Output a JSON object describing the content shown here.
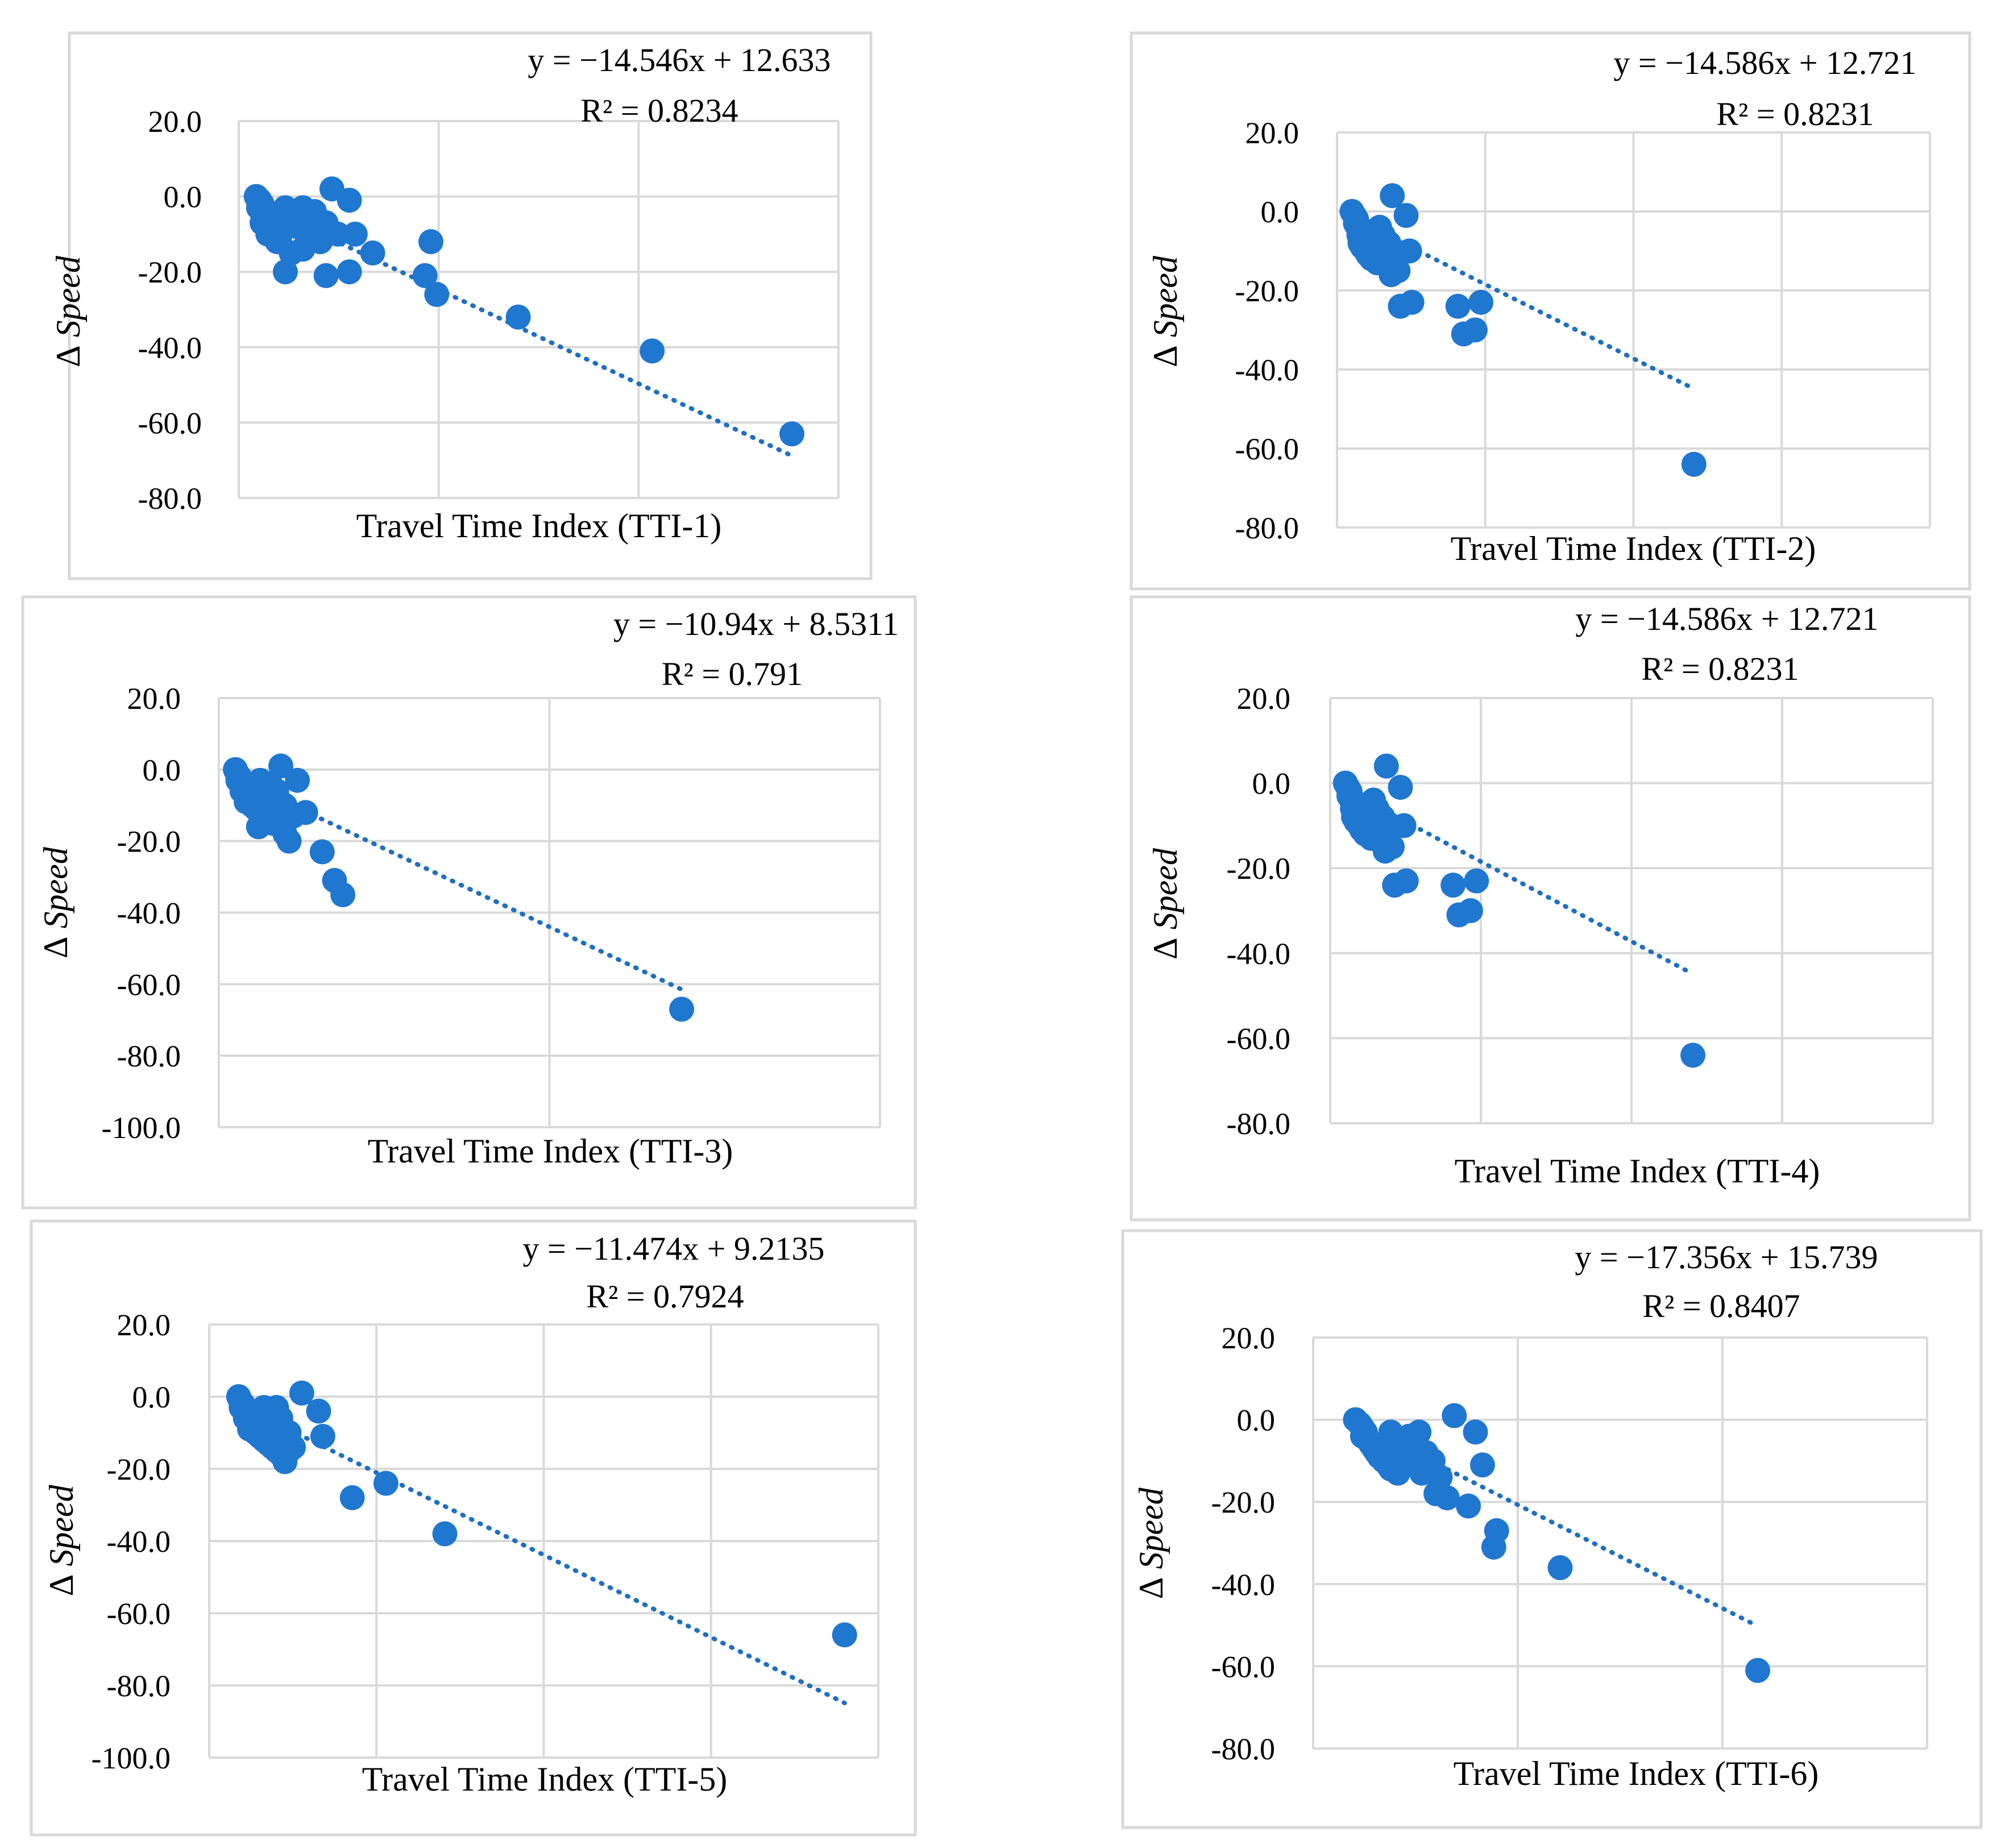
{
  "figure": {
    "colors": {
      "marker": "#1f77d0",
      "trend": "#1f70c1",
      "grid": "#d9d9d9"
    },
    "ylabel_symbol": "Δ",
    "ylabel_word": "Speed"
  },
  "chart_data": [
    {
      "type": "scatter",
      "xlabel": "Travel Time Index (TTI-1)",
      "ylabel": "Δ Speed",
      "equation": "y = −14.546x + 12.633",
      "r2_text": "R² = 0.8234",
      "trend": {
        "slope": -14.546,
        "intercept": 12.633
      },
      "ylim": [
        -80,
        20
      ],
      "yticks": [
        "20.0",
        "0.0",
        "-20.0",
        "-40.0",
        "-60.0",
        "-80.0"
      ],
      "xlim": [
        0.85,
        6.0
      ],
      "points": [
        [
          1.0,
          0
        ],
        [
          1.03,
          -1
        ],
        [
          1.05,
          -2
        ],
        [
          1.02,
          -3
        ],
        [
          1.06,
          -4
        ],
        [
          1.08,
          -5
        ],
        [
          1.1,
          -6
        ],
        [
          1.05,
          -7
        ],
        [
          1.12,
          -8
        ],
        [
          1.15,
          -9
        ],
        [
          1.1,
          -10
        ],
        [
          1.2,
          -11
        ],
        [
          1.18,
          -12
        ],
        [
          1.25,
          -3
        ],
        [
          1.3,
          -5
        ],
        [
          1.35,
          -8
        ],
        [
          1.4,
          -6
        ],
        [
          1.45,
          -10
        ],
        [
          1.5,
          -8
        ],
        [
          1.6,
          -7
        ],
        [
          1.55,
          -12
        ],
        [
          1.4,
          -14
        ],
        [
          1.3,
          -15
        ],
        [
          1.7,
          -10
        ],
        [
          1.85,
          -10
        ],
        [
          2.0,
          -15
        ],
        [
          1.65,
          2
        ],
        [
          1.8,
          -1
        ],
        [
          1.4,
          -3
        ],
        [
          1.2,
          -5
        ],
        [
          1.5,
          -4
        ],
        [
          1.25,
          -20
        ],
        [
          1.6,
          -21
        ],
        [
          1.8,
          -20
        ],
        [
          2.45,
          -21
        ],
        [
          2.5,
          -12
        ],
        [
          2.55,
          -26
        ],
        [
          3.25,
          -32
        ],
        [
          4.4,
          -41
        ],
        [
          5.6,
          -63
        ]
      ]
    },
    {
      "type": "scatter",
      "xlabel": "Travel Time Index (TTI-2)",
      "ylabel": "Δ Speed",
      "equation": "y = −14.586x + 12.721",
      "r2_text": "R² = 0.8231",
      "trend": {
        "slope": -14.586,
        "intercept": 12.721
      },
      "ylim": [
        -80,
        20
      ],
      "yticks": [
        "20.0",
        "0.0",
        "-20.0",
        "-40.0",
        "-60.0",
        "-80.0"
      ],
      "xlim": [
        0.85,
        6.0
      ],
      "points": [
        [
          0.98,
          0
        ],
        [
          1.0,
          -1
        ],
        [
          1.02,
          -2
        ],
        [
          1.01,
          -3
        ],
        [
          1.03,
          -4
        ],
        [
          1.05,
          -5
        ],
        [
          1.04,
          -6
        ],
        [
          1.06,
          -7
        ],
        [
          1.08,
          -8
        ],
        [
          1.07,
          -9
        ],
        [
          1.1,
          -10
        ],
        [
          1.12,
          -11
        ],
        [
          1.15,
          -12
        ],
        [
          1.2,
          -13
        ],
        [
          1.25,
          -6
        ],
        [
          1.28,
          -9
        ],
        [
          1.22,
          -4
        ],
        [
          1.3,
          -8
        ],
        [
          1.35,
          -12
        ],
        [
          1.32,
          -16
        ],
        [
          1.38,
          -15
        ],
        [
          1.33,
          4
        ],
        [
          1.45,
          -1
        ],
        [
          1.48,
          -10
        ],
        [
          1.4,
          -24
        ],
        [
          1.5,
          -23
        ],
        [
          1.9,
          -24
        ],
        [
          2.1,
          -23
        ],
        [
          1.95,
          -31
        ],
        [
          2.05,
          -30
        ],
        [
          1.15,
          -7
        ],
        [
          1.18,
          -10
        ],
        [
          1.05,
          -8
        ],
        [
          1.1,
          -5
        ],
        [
          3.95,
          -64
        ]
      ]
    },
    {
      "type": "scatter",
      "xlabel": "Travel Time Index (TTI-3)",
      "ylabel": "Δ Speed",
      "equation": "y = −10.94x + 8.5311",
      "r2_text": "R² = 0.791",
      "trend": {
        "slope": -10.94,
        "intercept": 8.5311
      },
      "ylim": [
        -100,
        20
      ],
      "yticks": [
        "20.0",
        "0.0",
        "-20.0",
        "-40.0",
        "-60.0",
        "-80.0",
        "-100.0"
      ],
      "xlim": [
        0.8,
        8.8
      ],
      "points": [
        [
          1.0,
          0
        ],
        [
          1.02,
          -1
        ],
        [
          1.05,
          -2
        ],
        [
          1.03,
          -3
        ],
        [
          1.07,
          -4
        ],
        [
          1.1,
          -5
        ],
        [
          1.08,
          -6
        ],
        [
          1.12,
          -7
        ],
        [
          1.15,
          -8
        ],
        [
          1.13,
          -9
        ],
        [
          1.2,
          -10
        ],
        [
          1.25,
          -11
        ],
        [
          1.3,
          -12
        ],
        [
          1.35,
          -13
        ],
        [
          1.4,
          -14
        ],
        [
          1.45,
          -15
        ],
        [
          1.28,
          -16
        ],
        [
          1.5,
          -14
        ],
        [
          1.55,
          -12
        ],
        [
          1.6,
          -10
        ],
        [
          1.5,
          -6
        ],
        [
          1.42,
          -4
        ],
        [
          1.38,
          -8
        ],
        [
          1.6,
          -18
        ],
        [
          1.65,
          -20
        ],
        [
          1.7,
          -13
        ],
        [
          1.6,
          -12
        ],
        [
          1.55,
          1
        ],
        [
          1.75,
          -3
        ],
        [
          1.85,
          -12
        ],
        [
          2.05,
          -23
        ],
        [
          2.2,
          -31
        ],
        [
          2.3,
          -35
        ],
        [
          1.3,
          -3
        ],
        [
          1.2,
          -6
        ],
        [
          1.45,
          -9
        ],
        [
          6.4,
          -67
        ]
      ]
    },
    {
      "type": "scatter",
      "xlabel": "Travel Time Index (TTI-4)",
      "ylabel": "Δ Speed",
      "equation": "y = −14.586x + 12.721",
      "r2_text": "R² = 0.8231",
      "trend": {
        "slope": -14.586,
        "intercept": 12.721
      },
      "ylim": [
        -80,
        20
      ],
      "yticks": [
        "20.0",
        "0.0",
        "-20.0",
        "-40.0",
        "-60.0",
        "-80.0"
      ],
      "xlim": [
        0.85,
        6.0
      ],
      "points": [
        [
          0.98,
          0
        ],
        [
          1.0,
          -1
        ],
        [
          1.02,
          -2
        ],
        [
          1.01,
          -3
        ],
        [
          1.03,
          -4
        ],
        [
          1.05,
          -5
        ],
        [
          1.04,
          -6
        ],
        [
          1.06,
          -7
        ],
        [
          1.08,
          -8
        ],
        [
          1.07,
          -9
        ],
        [
          1.1,
          -10
        ],
        [
          1.12,
          -11
        ],
        [
          1.15,
          -12
        ],
        [
          1.2,
          -13
        ],
        [
          1.25,
          -6
        ],
        [
          1.28,
          -9
        ],
        [
          1.22,
          -4
        ],
        [
          1.3,
          -8
        ],
        [
          1.35,
          -12
        ],
        [
          1.32,
          -16
        ],
        [
          1.38,
          -15
        ],
        [
          1.33,
          4
        ],
        [
          1.45,
          -1
        ],
        [
          1.48,
          -10
        ],
        [
          1.4,
          -24
        ],
        [
          1.5,
          -23
        ],
        [
          1.9,
          -24
        ],
        [
          2.1,
          -23
        ],
        [
          1.95,
          -31
        ],
        [
          2.05,
          -30
        ],
        [
          1.15,
          -7
        ],
        [
          1.18,
          -10
        ],
        [
          1.05,
          -8
        ],
        [
          1.1,
          -5
        ],
        [
          3.95,
          -64
        ]
      ]
    },
    {
      "type": "scatter",
      "xlabel": "Travel Time Index (TTI-5)",
      "ylabel": "Δ Speed",
      "equation": "y = −11.474x + 9.2135",
      "r2_text": "R² = 0.7924",
      "trend": {
        "slope": -11.474,
        "intercept": 9.2135
      },
      "ylim": [
        -100,
        20
      ],
      "yticks": [
        "20.0",
        "0.0",
        "-20.0",
        "-40.0",
        "-60.0",
        "-80.0",
        "-100.0"
      ],
      "xlim": [
        0.65,
        8.6
      ],
      "points": [
        [
          1.0,
          0
        ],
        [
          1.02,
          -1
        ],
        [
          1.05,
          -2
        ],
        [
          1.03,
          -3
        ],
        [
          1.07,
          -4
        ],
        [
          1.1,
          -5
        ],
        [
          1.08,
          -6
        ],
        [
          1.12,
          -7
        ],
        [
          1.15,
          -8
        ],
        [
          1.13,
          -9
        ],
        [
          1.2,
          -10
        ],
        [
          1.25,
          -11
        ],
        [
          1.3,
          -12
        ],
        [
          1.35,
          -13
        ],
        [
          1.4,
          -14
        ],
        [
          1.45,
          -15
        ],
        [
          1.5,
          -16
        ],
        [
          1.55,
          -18
        ],
        [
          1.6,
          -15
        ],
        [
          1.65,
          -14
        ],
        [
          1.5,
          -6
        ],
        [
          1.42,
          -4
        ],
        [
          1.38,
          -8
        ],
        [
          1.6,
          -10
        ],
        [
          1.45,
          -3
        ],
        [
          1.5,
          -6
        ],
        [
          1.75,
          1
        ],
        [
          1.95,
          -4
        ],
        [
          2.0,
          -11
        ],
        [
          2.35,
          -28
        ],
        [
          2.75,
          -24
        ],
        [
          3.45,
          -38
        ],
        [
          1.3,
          -3
        ],
        [
          1.2,
          -6
        ],
        [
          8.2,
          -66
        ]
      ]
    },
    {
      "type": "scatter",
      "xlabel": "Travel Time Index (TTI-6)",
      "ylabel": "Δ Speed",
      "equation": "y = −17.356x + 15.739",
      "r2_text": "R² = 0.8407",
      "trend": {
        "slope": -17.356,
        "intercept": 15.739
      },
      "ylim": [
        -80,
        20
      ],
      "yticks": [
        "20.0",
        "0.0",
        "-20.0",
        "-40.0",
        "-60.0",
        "-80.0"
      ],
      "xlim": [
        0.65,
        5.0
      ],
      "points": [
        [
          0.95,
          0
        ],
        [
          0.98,
          -1
        ],
        [
          1.0,
          -2
        ],
        [
          1.02,
          -3
        ],
        [
          1.0,
          -4
        ],
        [
          1.04,
          -5
        ],
        [
          1.06,
          -6
        ],
        [
          1.08,
          -7
        ],
        [
          1.1,
          -8
        ],
        [
          1.12,
          -9
        ],
        [
          1.15,
          -10
        ],
        [
          1.18,
          -11
        ],
        [
          1.2,
          -12
        ],
        [
          1.25,
          -13
        ],
        [
          1.3,
          -11
        ],
        [
          1.35,
          -9
        ],
        [
          1.28,
          -7
        ],
        [
          1.22,
          -5
        ],
        [
          1.33,
          -4
        ],
        [
          1.4,
          -3
        ],
        [
          1.38,
          -6
        ],
        [
          1.45,
          -8
        ],
        [
          1.5,
          -10
        ],
        [
          1.48,
          -12
        ],
        [
          1.42,
          -13
        ],
        [
          1.55,
          -14
        ],
        [
          1.52,
          -18
        ],
        [
          1.6,
          -19
        ],
        [
          1.65,
          1
        ],
        [
          1.8,
          -3
        ],
        [
          1.85,
          -11
        ],
        [
          1.75,
          -21
        ],
        [
          1.95,
          -27
        ],
        [
          1.93,
          -31
        ],
        [
          2.4,
          -36
        ],
        [
          1.15,
          -6
        ],
        [
          1.3,
          -9
        ],
        [
          1.2,
          -3
        ],
        [
          3.8,
          -61
        ]
      ]
    }
  ]
}
